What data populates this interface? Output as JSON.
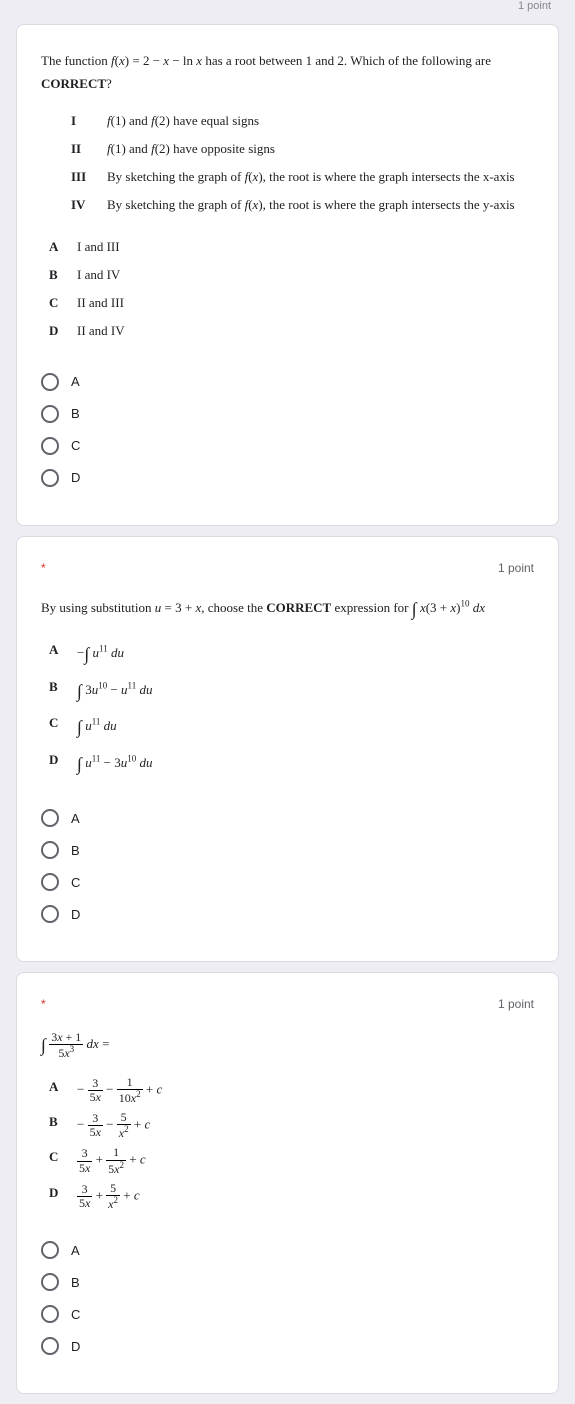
{
  "top_point": "1 point",
  "q1": {
    "prompt_html": "The function <i>f</i>(<i>x</i>) = 2 − <i>x</i> − ln <i>x</i> has a root between 1 and 2. Which of the following are <b>CORRECT</b>?",
    "statements": [
      {
        "label": "I",
        "text_html": "<i>f</i>(1) and <i>f</i>(2) have equal signs"
      },
      {
        "label": "II",
        "text_html": "<i>f</i>(1) and <i>f</i>(2) have opposite signs"
      },
      {
        "label": "III",
        "text_html": "By sketching the graph of <i>f</i>(<i>x</i>), the root is where the graph intersects the x-axis"
      },
      {
        "label": "IV",
        "text_html": "By sketching the graph of <i>f</i>(<i>x</i>), the root is where the graph intersects the y-axis"
      }
    ],
    "options": [
      {
        "label": "A",
        "text_html": "I and III"
      },
      {
        "label": "B",
        "text_html": "I and IV"
      },
      {
        "label": "C",
        "text_html": "II and  III"
      },
      {
        "label": "D",
        "text_html": "II and IV"
      }
    ],
    "radios": [
      "A",
      "B",
      "C",
      "D"
    ]
  },
  "q2": {
    "required": "*",
    "points": "1 point",
    "prompt_html": "By using substitution <i>u</i> = 3 + <i>x</i>, choose the <b>CORRECT</b> expression for <span class='math-expr'><span class='int'>∫</span> <i>x</i>(3 + <i>x</i>)<sup>10</sup> <i>dx</i></span>",
    "options": [
      {
        "label": "A",
        "text_html": "−<span class='int'>∫</span> <i>u</i><sup>11</sup> <i>du</i>"
      },
      {
        "label": "B",
        "text_html": "<span class='int'>∫</span> 3<i>u</i><sup>10</sup> − <i>u</i><sup>11</sup> <i>du</i>"
      },
      {
        "label": "C",
        "text_html": "<span class='int'>∫</span> <i>u</i><sup>11</sup> <i>du</i>"
      },
      {
        "label": "D",
        "text_html": "<span class='int'>∫</span> <i>u</i><sup>11</sup> − 3<i>u</i><sup>10</sup> <i>du</i>"
      }
    ],
    "radios": [
      "A",
      "B",
      "C",
      "D"
    ]
  },
  "q3": {
    "required": "*",
    "points": "1 point",
    "prompt_html": "<span class='math-expr'><span class='int'>∫</span> <span class='frac'><span class='num'>3<i>x</i> + 1</span><span class='den'>5<i>x</i><sup>3</sup></span></span> <i>dx</i> =</span>",
    "options": [
      {
        "label": "A",
        "text_html": "− <span class='frac'><span class='num'>3</span><span class='den'>5<i>x</i></span></span> − <span class='frac'><span class='num'>1</span><span class='den'>10<i>x</i><sup>2</sup></span></span> + <i>c</i>"
      },
      {
        "label": "B",
        "text_html": "− <span class='frac'><span class='num'>3</span><span class='den'>5<i>x</i></span></span> − <span class='frac'><span class='num'>5</span><span class='den'><i>x</i><sup>2</sup></span></span> + <i>c</i>"
      },
      {
        "label": "C",
        "text_html": "<span class='frac'><span class='num'>3</span><span class='den'>5<i>x</i></span></span> + <span class='frac'><span class='num'>1</span><span class='den'>5<i>x</i><sup>2</sup></span></span> + <i>c</i>"
      },
      {
        "label": "D",
        "text_html": "<span class='frac'><span class='num'>3</span><span class='den'>5<i>x</i></span></span> + <span class='frac'><span class='num'>5</span><span class='den'><i>x</i><sup>2</sup></span></span> + <i>c</i>"
      }
    ],
    "radios": [
      "A",
      "B",
      "C",
      "D"
    ]
  }
}
